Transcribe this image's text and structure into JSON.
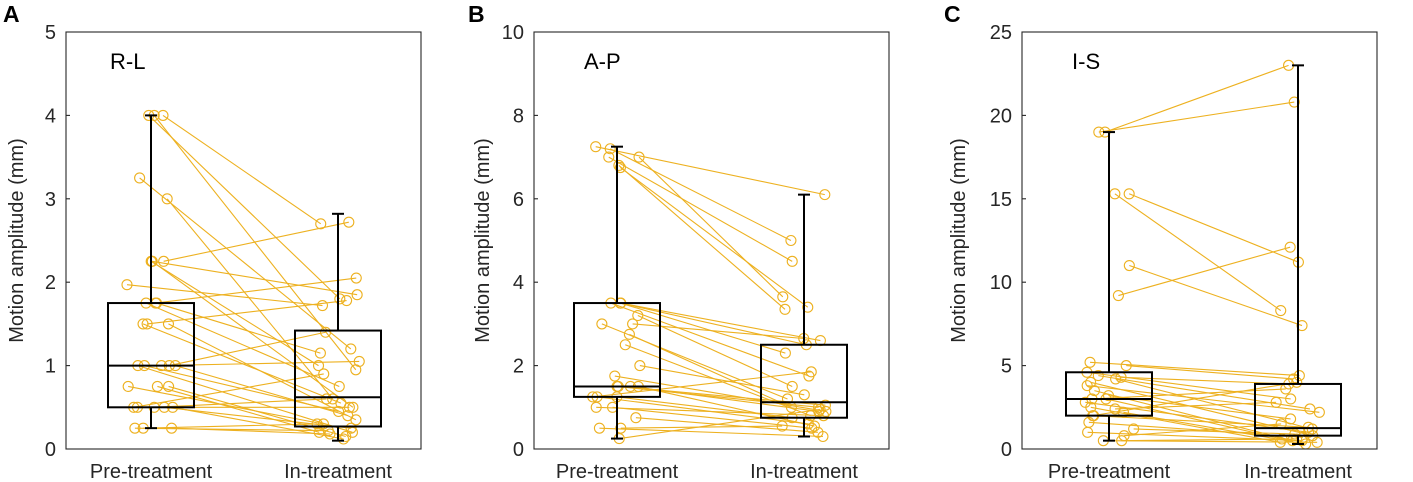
{
  "figure": {
    "line_color": "#EDB120",
    "box_color": "#000000"
  },
  "chart_data": [
    {
      "type": "box",
      "panel": "A",
      "title": "R-L",
      "xlabel": "",
      "ylabel": "Motion amplitude (mm)",
      "categories": [
        "Pre-treatment",
        "In-treatment"
      ],
      "ylim": [
        0,
        5
      ],
      "yticks": [
        0,
        1,
        2,
        3,
        4,
        5
      ],
      "box_stats": [
        {
          "whisker_low": 0.25,
          "q1": 0.5,
          "median": 1.0,
          "q3": 1.75,
          "whisker_high": 4.0
        },
        {
          "whisker_low": 0.1,
          "q1": 0.27,
          "median": 0.62,
          "q3": 1.42,
          "whisker_high": 2.82
        }
      ],
      "pairs": [
        [
          4.0,
          2.7
        ],
        [
          4.0,
          0.95
        ],
        [
          4.0,
          1.8
        ],
        [
          3.25,
          1.2
        ],
        [
          3.0,
          0.6
        ],
        [
          2.25,
          2.72
        ],
        [
          2.25,
          1.0
        ],
        [
          2.25,
          0.5
        ],
        [
          2.25,
          1.85
        ],
        [
          1.97,
          1.72
        ],
        [
          1.75,
          2.05
        ],
        [
          1.75,
          1.15
        ],
        [
          1.75,
          0.75
        ],
        [
          1.5,
          0.35
        ],
        [
          1.5,
          0.55
        ],
        [
          1.5,
          1.78
        ],
        [
          1.0,
          0.2
        ],
        [
          1.0,
          0.4
        ],
        [
          1.0,
          1.05
        ],
        [
          1.0,
          1.4
        ],
        [
          0.75,
          0.15
        ],
        [
          0.75,
          0.3
        ],
        [
          0.75,
          0.2
        ],
        [
          0.5,
          0.12
        ],
        [
          0.5,
          0.5
        ],
        [
          0.5,
          0.25
        ],
        [
          0.5,
          0.9
        ],
        [
          0.25,
          0.18
        ],
        [
          0.25,
          0.22
        ],
        [
          0.25,
          0.3
        ],
        [
          0.5,
          0.6
        ],
        [
          1.0,
          0.45
        ]
      ]
    },
    {
      "type": "box",
      "panel": "B",
      "title": "A-P",
      "xlabel": "",
      "ylabel": "Motion amplitude (mm)",
      "categories": [
        "Pre-treatment",
        "In-treatment"
      ],
      "ylim": [
        0,
        10
      ],
      "yticks": [
        0,
        2,
        4,
        6,
        8,
        10
      ],
      "box_stats": [
        {
          "whisker_low": 0.25,
          "q1": 1.25,
          "median": 1.5,
          "q3": 3.5,
          "whisker_high": 7.25
        },
        {
          "whisker_low": 0.3,
          "q1": 0.75,
          "median": 1.12,
          "q3": 2.5,
          "whisker_high": 6.1
        }
      ],
      "pairs": [
        [
          7.25,
          6.1
        ],
        [
          7.2,
          5.0
        ],
        [
          7.0,
          4.5
        ],
        [
          7.0,
          3.65
        ],
        [
          6.8,
          3.35
        ],
        [
          6.75,
          3.4
        ],
        [
          3.5,
          2.6
        ],
        [
          3.5,
          2.5
        ],
        [
          3.5,
          2.3
        ],
        [
          3.5,
          1.75
        ],
        [
          3.2,
          1.5
        ],
        [
          3.0,
          2.65
        ],
        [
          3.0,
          1.2
        ],
        [
          2.75,
          1.0
        ],
        [
          2.5,
          0.8
        ],
        [
          2.0,
          1.3
        ],
        [
          1.75,
          0.9
        ],
        [
          1.5,
          0.55
        ],
        [
          1.5,
          1.0
        ],
        [
          1.5,
          1.05
        ],
        [
          1.25,
          0.75
        ],
        [
          1.25,
          0.6
        ],
        [
          1.0,
          0.8
        ],
        [
          1.0,
          0.5
        ],
        [
          0.75,
          0.4
        ],
        [
          0.5,
          0.55
        ],
        [
          0.5,
          0.3
        ],
        [
          0.25,
          0.95
        ],
        [
          1.5,
          0.9
        ],
        [
          1.25,
          1.85
        ]
      ]
    },
    {
      "type": "box",
      "panel": "C",
      "title": "I-S",
      "xlabel": "",
      "ylabel": "Motion amplitude (mm)",
      "categories": [
        "Pre-treatment",
        "In-treatment"
      ],
      "ylim": [
        0,
        25
      ],
      "yticks": [
        0,
        5,
        10,
        15,
        20,
        25
      ],
      "box_stats": [
        {
          "whisker_low": 0.5,
          "q1": 2.0,
          "median": 3.0,
          "q3": 4.6,
          "whisker_high": 19.0
        },
        {
          "whisker_low": 0.3,
          "q1": 0.8,
          "median": 1.25,
          "q3": 3.9,
          "whisker_high": 23.0
        }
      ],
      "pairs": [
        [
          19.0,
          23.0
        ],
        [
          19.0,
          20.8
        ],
        [
          15.3,
          11.2
        ],
        [
          15.3,
          8.3
        ],
        [
          11.0,
          7.4
        ],
        [
          9.2,
          12.1
        ],
        [
          5.2,
          4.4
        ],
        [
          5.0,
          4.2
        ],
        [
          4.6,
          3.0
        ],
        [
          4.4,
          2.4
        ],
        [
          4.3,
          3.9
        ],
        [
          4.2,
          1.2
        ],
        [
          4.0,
          0.8
        ],
        [
          3.8,
          2.2
        ],
        [
          3.5,
          0.5
        ],
        [
          3.2,
          1.8
        ],
        [
          3.0,
          0.6
        ],
        [
          3.0,
          3.6
        ],
        [
          2.8,
          1.0
        ],
        [
          2.5,
          0.4
        ],
        [
          2.4,
          2.8
        ],
        [
          2.2,
          0.3
        ],
        [
          2.0,
          1.3
        ],
        [
          2.0,
          4.0
        ],
        [
          1.6,
          0.7
        ],
        [
          1.2,
          0.9
        ],
        [
          1.0,
          0.5
        ],
        [
          0.8,
          1.5
        ],
        [
          0.5,
          0.4
        ],
        [
          0.5,
          0.6
        ]
      ]
    }
  ]
}
